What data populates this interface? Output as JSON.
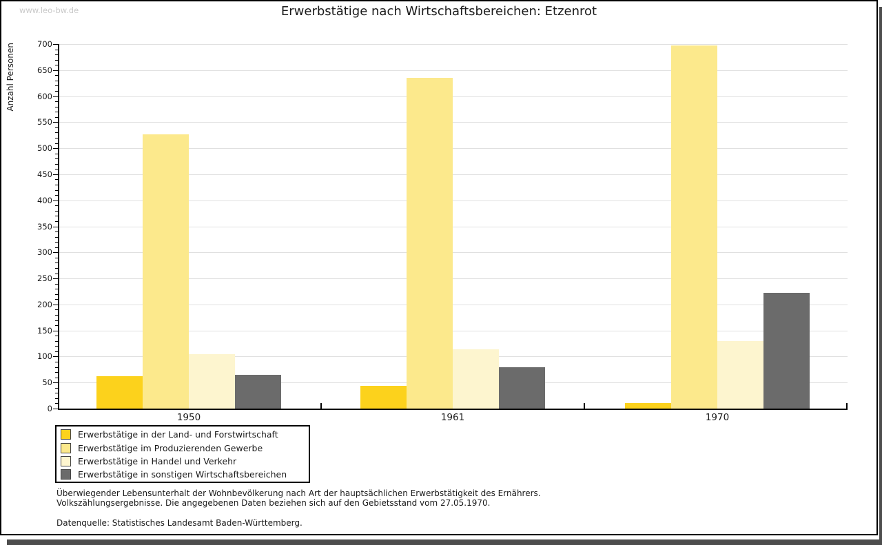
{
  "watermark": "www.leo-bw.de",
  "title": "Erwerbstätige nach Wirtschaftsbereichen: Etzenrot",
  "chart_data": {
    "type": "bar",
    "categories": [
      "1950",
      "1961",
      "1970"
    ],
    "series": [
      {
        "name": "Erwerbstätige in der Land- und Forstwirtschaft",
        "color": "#fcd21c",
        "values": [
          62,
          44,
          11
        ]
      },
      {
        "name": "Erwerbstätige im Produzierenden Gewerbe",
        "color": "#fce98c",
        "values": [
          526,
          635,
          697
        ]
      },
      {
        "name": "Erwerbstätige in Handel und Verkehr",
        "color": "#fdf5cf",
        "values": [
          104,
          114,
          130
        ]
      },
      {
        "name": "Erwerbstätige in sonstigen Wirtschaftsbereichen",
        "color": "#6b6b6b",
        "values": [
          65,
          80,
          222
        ]
      }
    ],
    "title": "Erwerbstätige nach Wirtschaftsbereichen: Etzenrot",
    "xlabel": "",
    "ylabel": "Anzahl Personen",
    "ylim": [
      0,
      700
    ],
    "y_tick_step": 50,
    "y_minor_tick_step": 10,
    "grid": true,
    "legend_position": "bottom-left"
  },
  "footnote_lines": [
    "Überwiegender Lebensunterhalt der Wohnbevölkerung nach Art der hauptsächlichen Erwerbstätigkeit des Ernährers.",
    "Volkszählungsergebnisse. Die angegebenen Daten beziehen sich auf den Gebietsstand vom 27.05.1970."
  ],
  "source_line": "Datenquelle: Statistisches Landesamt Baden-Württemberg.",
  "colors": {
    "grid": "#e0e0e0",
    "axis": "#000000",
    "frame_border": "#000000",
    "shadow": "#4d4d4d",
    "watermark_text": "#c9c9c9",
    "legend_swatch_border": "#444444"
  }
}
